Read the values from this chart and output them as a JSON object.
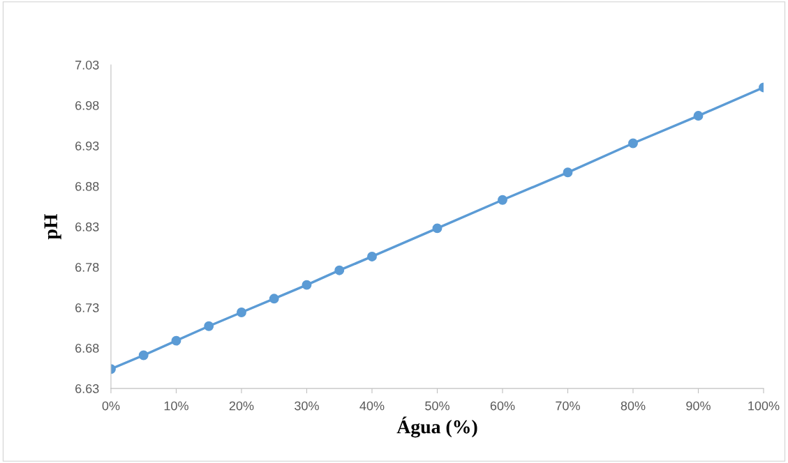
{
  "chart_data": {
    "type": "line",
    "xlabel": "Água (%)",
    "ylabel": "pH",
    "x": [
      0,
      5,
      10,
      15,
      20,
      25,
      30,
      35,
      40,
      50,
      60,
      70,
      80,
      90,
      100
    ],
    "series": [
      {
        "color": "#5b9bd5",
        "values": [
          6.654,
          6.671,
          6.689,
          6.707,
          6.724,
          6.741,
          6.758,
          6.776,
          6.793,
          6.828,
          6.863,
          6.897,
          6.933,
          6.967,
          7.002
        ]
      }
    ],
    "xlim": [
      0,
      100
    ],
    "xticks": [
      {
        "value": 0,
        "label": "0%"
      },
      {
        "value": 10,
        "label": "10%"
      },
      {
        "value": 20,
        "label": "20%"
      },
      {
        "value": 30,
        "label": "30%"
      },
      {
        "value": 40,
        "label": "40%"
      },
      {
        "value": 50,
        "label": "50%"
      },
      {
        "value": 60,
        "label": "60%"
      },
      {
        "value": 70,
        "label": "70%"
      },
      {
        "value": 80,
        "label": "80%"
      },
      {
        "value": 90,
        "label": "90%"
      },
      {
        "value": 100,
        "label": "100%"
      }
    ],
    "ylim": [
      6.63,
      7.03
    ],
    "yticks": [
      6.63,
      6.68,
      6.73,
      6.78,
      6.83,
      6.88,
      6.93,
      6.98,
      7.03
    ],
    "grid": false,
    "legend": false,
    "marker": "circle",
    "line_style": "solid"
  }
}
